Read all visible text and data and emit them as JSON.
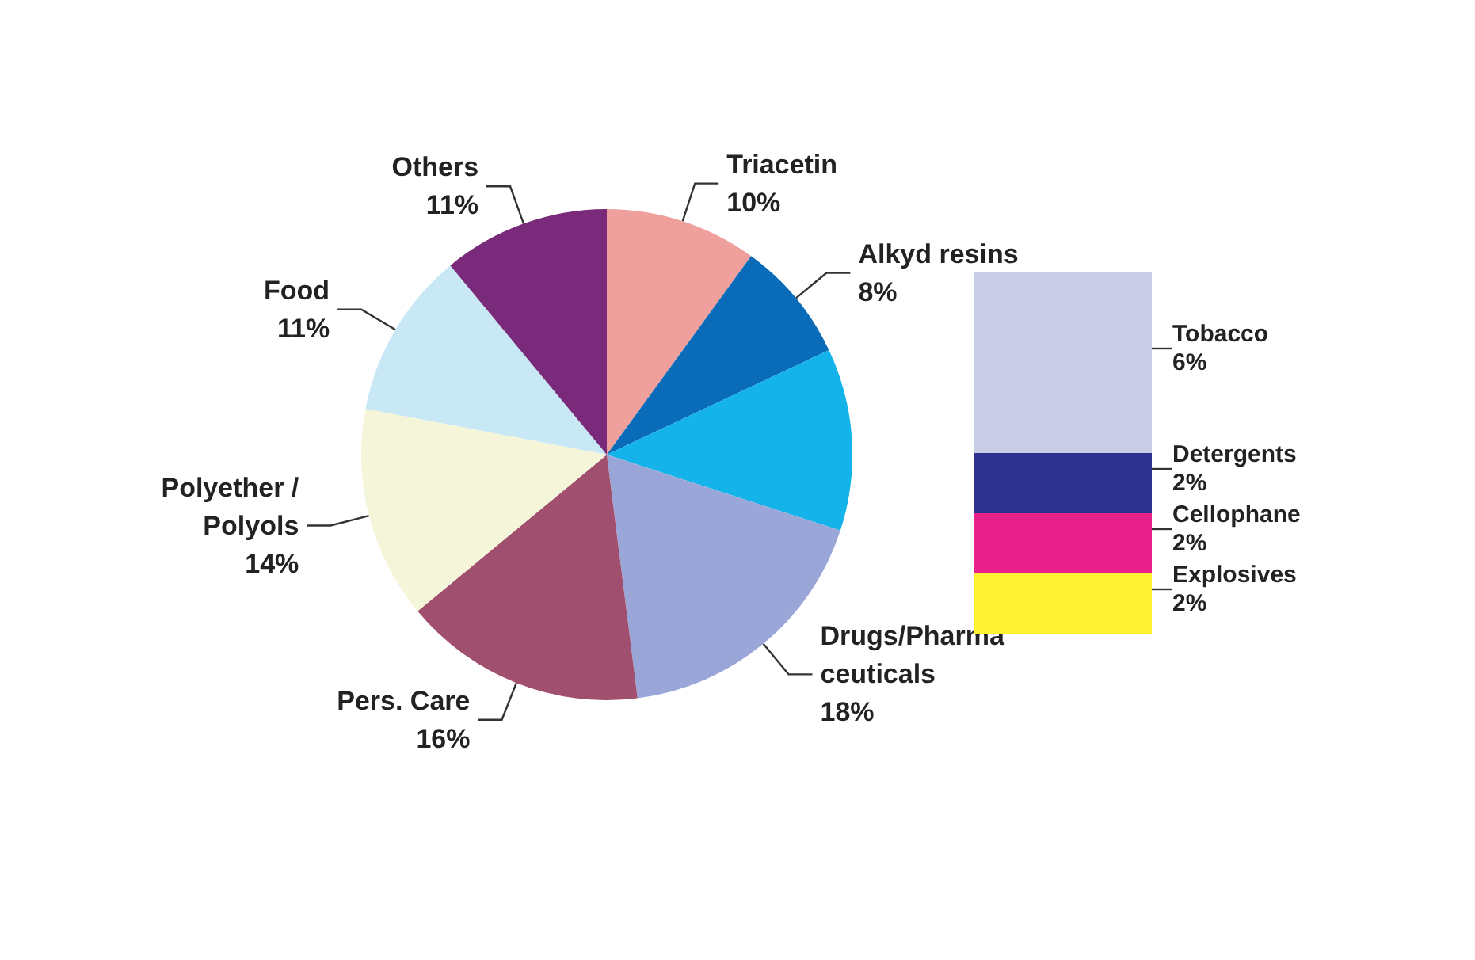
{
  "chart_data": [
    {
      "type": "pie",
      "categories": [
        "Triacetin",
        "Alkyd resins",
        null,
        "Drugs/Pharma\nceuticals",
        "Pers. Care",
        "Polyether /\nPolyols",
        "Food",
        "Others"
      ],
      "values": [
        10,
        8,
        12,
        18,
        16,
        14,
        11,
        11
      ],
      "value_labels": [
        "10%",
        "8%",
        null,
        "18%",
        "16%",
        "14%",
        "11%",
        "11%"
      ],
      "colors": [
        "#f0a09c",
        "#0a6cb8",
        "#14b4ea",
        "#9ba6d8",
        "#a0506e",
        "#f5f5da",
        "#c8e8f5",
        "#7a2a7a"
      ],
      "legend": false
    },
    {
      "type": "bar",
      "stacked": true,
      "categories": [
        null
      ],
      "legend": false,
      "series": [
        {
          "name": "Explosives",
          "color": "#fef033",
          "values": [
            2
          ],
          "value_labels": [
            "2%"
          ]
        },
        {
          "name": "Cellophane",
          "color": "#e8208a",
          "values": [
            2
          ],
          "value_labels": [
            "2%"
          ]
        },
        {
          "name": "Detergents",
          "color": "#2e3190",
          "values": [
            2
          ],
          "value_labels": [
            "2%"
          ]
        },
        {
          "name": "Tobacco",
          "color": "#c8cce6",
          "values": [
            6
          ],
          "value_labels": [
            "6%"
          ]
        }
      ]
    }
  ]
}
